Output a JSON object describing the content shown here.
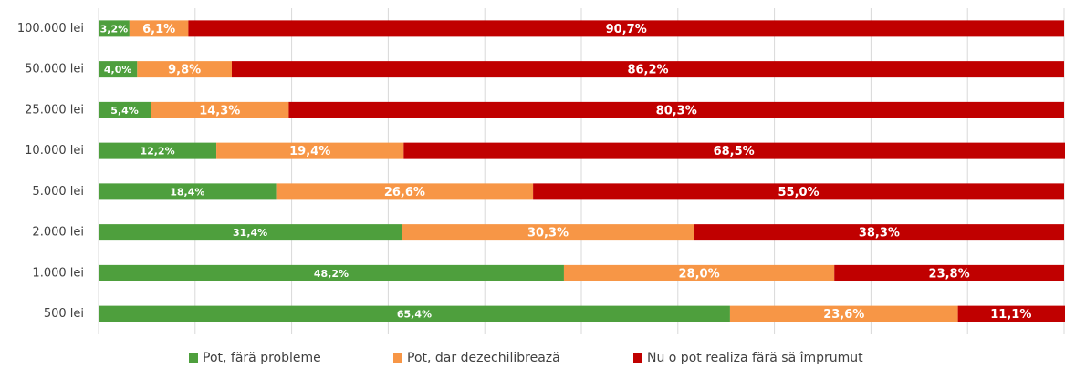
{
  "chart_data": {
    "type": "stacked_bar_horizontal",
    "categories": [
      "100.000 lei",
      "50.000 lei",
      "25.000 lei",
      "10.000 lei",
      "5.000 lei",
      "2.000 lei",
      "1.000 lei",
      "500 lei"
    ],
    "series": [
      {
        "name": "Pot, fără probleme",
        "color": "#4e9f3d",
        "values": [
          3.2,
          4.0,
          5.4,
          12.2,
          18.4,
          31.4,
          48.2,
          65.4
        ],
        "value_labels": [
          "3,2%",
          "4,0%",
          "5,4%",
          "12,2%",
          "18,4%",
          "31,4%",
          "48,2%",
          "65,4%"
        ]
      },
      {
        "name": "Pot, dar dezechilibrează",
        "color": "#f79646",
        "values": [
          6.1,
          9.8,
          14.3,
          19.4,
          26.6,
          30.3,
          28.0,
          23.6
        ],
        "value_labels": [
          "6,1%",
          "9,8%",
          "14,3%",
          "19,4%",
          "26,6%",
          "30,3%",
          "28,0%",
          "23,6%"
        ]
      },
      {
        "name": "Nu o pot realiza fără să împrumut",
        "color": "#c00000",
        "values": [
          90.7,
          86.2,
          80.3,
          68.5,
          55.0,
          38.3,
          23.8,
          11.1
        ],
        "value_labels": [
          "90,7%",
          "86,2%",
          "80,3%",
          "68,5%",
          "55,0%",
          "38,3%",
          "23,8%",
          "11,1%"
        ]
      }
    ],
    "xlim": [
      0,
      100
    ],
    "xticks": [
      0,
      10,
      20,
      30,
      40,
      50,
      60,
      70,
      80,
      90,
      100
    ],
    "grid": true,
    "legend": "bottom"
  }
}
